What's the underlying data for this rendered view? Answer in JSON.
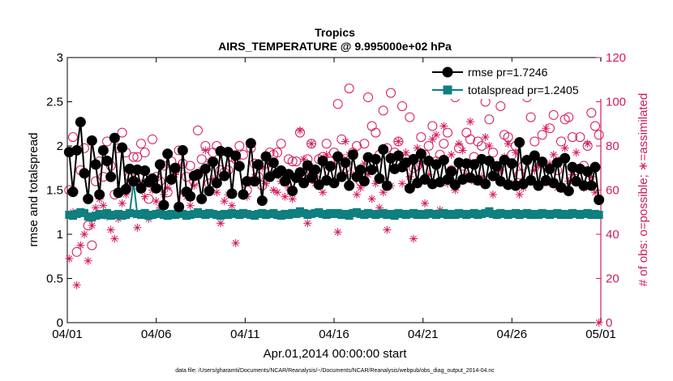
{
  "chart_data": {
    "type": "line",
    "title": "Tropics",
    "subtitle": "AIRS_TEMPERATURE @ 9.995000e+02 hPa",
    "xlabel": "Apr.01,2014 00:00:00 start",
    "ylabel": "rmse and totalspread",
    "ylabel_right": "# of obs: o=possible; ∗=assimilated",
    "footer": "data file: /Users/gharamti/Documents/NCAR/Reanalysis/~/Documents/NCAR/Reanalysis/webpub/obs_diag_output_2014-04.nc",
    "xlim": [
      0,
      30
    ],
    "ylim": [
      0,
      3
    ],
    "ylim_right": [
      0,
      120
    ],
    "x_ticks": [
      0,
      5,
      10,
      15,
      20,
      25,
      30
    ],
    "x_tick_labels": [
      "04/01",
      "04/06",
      "04/11",
      "04/16",
      "04/21",
      "04/26",
      "05/01"
    ],
    "y_ticks": [
      0,
      0.5,
      1,
      1.5,
      2,
      2.5,
      3
    ],
    "y_tick_labels": [
      "0",
      "0.5",
      "1",
      "1.5",
      "2",
      "2.5",
      "3"
    ],
    "y_right_ticks": [
      0,
      20,
      40,
      60,
      80,
      100,
      120
    ],
    "y_right_tick_labels": [
      "0",
      "20",
      "40",
      "60",
      "80",
      "100",
      "120"
    ],
    "legend": [
      {
        "name": "rmse pr=1.7246",
        "color": "#000000",
        "marker": "circle"
      },
      {
        "name": "totalspread pr=1.2405",
        "color": "#0f7f7f",
        "marker": "square"
      }
    ],
    "colors": {
      "rmse": "#000000",
      "spread": "#0f7f7f",
      "obs": "#d6195b"
    },
    "series": [
      {
        "name": "rmse",
        "values": [
          1.93,
          1.48,
          1.95,
          2.27,
          1.69,
          1.4,
          2.06,
          1.79,
          1.45,
          1.95,
          1.83,
          1.65,
          2.09,
          1.47,
          1.98,
          1.51,
          1.74,
          1.6,
          1.73,
          1.52,
          1.72,
          1.59,
          1.63,
          1.52,
          1.79,
          1.33,
          1.91,
          1.62,
          1.75,
          1.31,
          1.95,
          1.48,
          1.43,
          1.66,
          1.68,
          1.4,
          1.74,
          1.49,
          1.82,
          1.58,
          1.94,
          1.66,
          1.93,
          1.46,
          1.89,
          1.77,
          1.45,
          1.6,
          2.03,
          1.6,
          1.79,
          1.38,
          1.88,
          1.65,
          1.81,
          1.69,
          1.72,
          1.6,
          1.68,
          1.49,
          1.64,
          1.7,
          1.58,
          1.78,
          1.64,
          1.73,
          1.56,
          1.83,
          1.61,
          1.77,
          1.58,
          1.88,
          1.65,
          1.81,
          1.55,
          1.9,
          1.65,
          1.73,
          1.6,
          1.87,
          1.73,
          1.85,
          1.63,
          1.96,
          1.55,
          1.86,
          1.74,
          1.89,
          1.76,
          1.81,
          1.52,
          1.85,
          1.58,
          1.91,
          1.62,
          1.83,
          1.57,
          1.79,
          1.59,
          1.84,
          1.62,
          1.71,
          1.56,
          1.81,
          1.62,
          1.8,
          1.64,
          1.79,
          1.61,
          1.85,
          1.57,
          1.83,
          1.66,
          1.77,
          1.6,
          1.84,
          1.56,
          1.8,
          1.55,
          2.04,
          1.57,
          1.84,
          1.61,
          1.89,
          1.55,
          1.82,
          1.61,
          1.74,
          1.58,
          1.81,
          1.53,
          1.86,
          1.49,
          1.76,
          1.6,
          1.74,
          1.55,
          1.71,
          1.55,
          1.76,
          1.39
        ]
      },
      {
        "name": "totalspread",
        "values": [
          1.22,
          1.21,
          1.23,
          1.25,
          1.24,
          1.2,
          1.19,
          1.21,
          1.23,
          1.22,
          1.24,
          1.21,
          1.22,
          1.23,
          1.21,
          1.22,
          1.24,
          1.59,
          1.23,
          1.22,
          1.24,
          1.21,
          1.22,
          1.23,
          1.24,
          1.22,
          1.21,
          1.23,
          1.22,
          1.24,
          1.23,
          1.21,
          1.22,
          1.23,
          1.25,
          1.23,
          1.22,
          1.24,
          1.23,
          1.22,
          1.21,
          1.23,
          1.22,
          1.24,
          1.23,
          1.22,
          1.24,
          1.23,
          1.22,
          1.21,
          1.23,
          1.24,
          1.22,
          1.23,
          1.24,
          1.22,
          1.21,
          1.23,
          1.22,
          1.24,
          1.23,
          1.26,
          1.24,
          1.22,
          1.23,
          1.24,
          1.25,
          1.23,
          1.22,
          1.24,
          1.23,
          1.24,
          1.22,
          1.23,
          1.21,
          1.24,
          1.25,
          1.23,
          1.22,
          1.24,
          1.23,
          1.22,
          1.23,
          1.24,
          1.22,
          1.23,
          1.21,
          1.24,
          1.23,
          1.22,
          1.23,
          1.24,
          1.22,
          1.23,
          1.22,
          1.24,
          1.23,
          1.22,
          1.23,
          1.24,
          1.22,
          1.23,
          1.22,
          1.24,
          1.23,
          1.22,
          1.23,
          1.24,
          1.22,
          1.23,
          1.24,
          1.26,
          1.23,
          1.22,
          1.24,
          1.23,
          1.22,
          1.23,
          1.24,
          1.22,
          1.23,
          1.24,
          1.22,
          1.23,
          1.22,
          1.24,
          1.23,
          1.22,
          1.23,
          1.24,
          1.22,
          1.23,
          1.22,
          1.24,
          1.23,
          1.22,
          1.23,
          1.24,
          1.22,
          1.23,
          1.22
        ]
      },
      {
        "name": "obs_possible",
        "axis": "right",
        "values": [
          60,
          84,
          32,
          69,
          79,
          44,
          35,
          64,
          73,
          66,
          82,
          71,
          58,
          79,
          86,
          77,
          66,
          75,
          75,
          81,
          77,
          56,
          83,
          66,
          64,
          71,
          59,
          73,
          69,
          78,
          72,
          66,
          71,
          64,
          87,
          74,
          80,
          63,
          77,
          80,
          69,
          68,
          69,
          75,
          74,
          80,
          76,
          60,
          79,
          72,
          66,
          62,
          72,
          77,
          76,
          77,
          81,
          64,
          74,
          73,
          73,
          86,
          67,
          74,
          81,
          65,
          74,
          75,
          81,
          73,
          77,
          99,
          83,
          70,
          106,
          77,
          80,
          64,
          81,
          102,
          89,
          86,
          76,
          96,
          79,
          104,
          77,
          82,
          98,
          74,
          93,
          70,
          71,
          84,
          76,
          80,
          89,
          73,
          76,
          81,
          86,
          69,
          102,
          79,
          71,
          86,
          83,
          75,
          82,
          80,
          100,
          92,
          77,
          67,
          98,
          85,
          84,
          76,
          80,
          67,
          71,
          102,
          93,
          82,
          72,
          85,
          64,
          88,
          94,
          69,
          82,
          92,
          93,
          84,
          69,
          84,
          71,
          80,
          95,
          89,
          85
        ]
      },
      {
        "name": "obs_assimilated",
        "axis": "right",
        "values": [
          29,
          50,
          17,
          35,
          40,
          28,
          44,
          52,
          56,
          53,
          48,
          42,
          38,
          47,
          54,
          58,
          62,
          49,
          43,
          63,
          57,
          47,
          60,
          55,
          52,
          58,
          61,
          64,
          67,
          71,
          59,
          57,
          53,
          62,
          66,
          69,
          78,
          73,
          65,
          59,
          45,
          55,
          58,
          53,
          36,
          49,
          58,
          57,
          64,
          66,
          71,
          70,
          63,
          72,
          60,
          59,
          64,
          57,
          61,
          56,
          66,
          87,
          74,
          45,
          81,
          63,
          62,
          59,
          76,
          71,
          72,
          41,
          75,
          82,
          76,
          67,
          58,
          61,
          72,
          67,
          56,
          63,
          52,
          59,
          42,
          62,
          69,
          82,
          63,
          77,
          66,
          38,
          79,
          72,
          54,
          67,
          83,
          85,
          51,
          89,
          63,
          76,
          60,
          81,
          78,
          67,
          91,
          64,
          73,
          66,
          84,
          80,
          58,
          70,
          69,
          75,
          81,
          63,
          77,
          58,
          61,
          74,
          65,
          69,
          71,
          63,
          88,
          72,
          76,
          61,
          74,
          79,
          64,
          67,
          77,
          70,
          61,
          81,
          66,
          59,
          0
        ]
      }
    ]
  }
}
